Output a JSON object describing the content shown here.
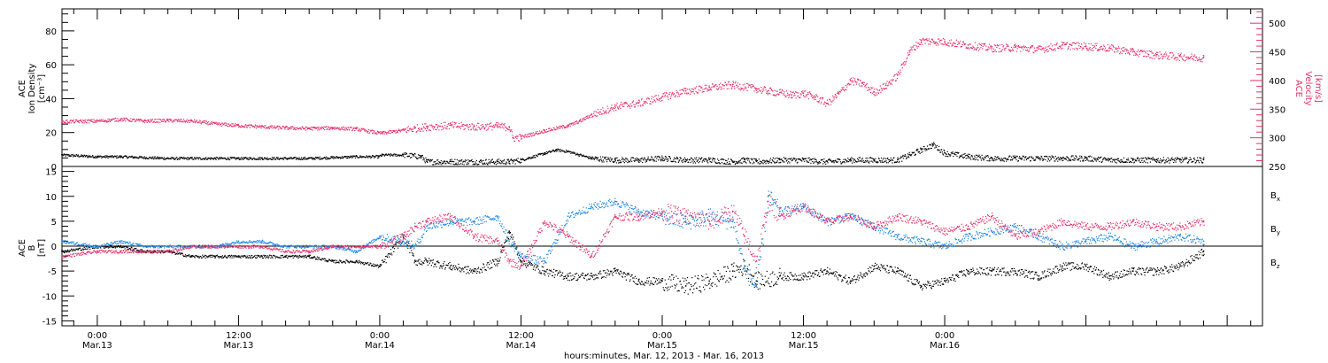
{
  "chart_data": [
    {
      "type": "scatter",
      "panel": "top",
      "ylabel": [
        "ACE",
        "Ion Density",
        "[cm⁻³]"
      ],
      "ylabel_right": [
        "ACE",
        "Velocity",
        "[km/s]"
      ],
      "ylim": [
        0,
        93
      ],
      "ylim_right": [
        250,
        525
      ],
      "yticks": [
        0,
        20,
        40,
        60,
        80
      ],
      "yticks_right": [
        250,
        300,
        350,
        400,
        450,
        500
      ],
      "color_left": "#000000",
      "color_right": "#e8306a",
      "series": [
        {
          "axis": "left",
          "color": "#000000",
          "x": [
            -3,
            0,
            2,
            6,
            10,
            14,
            18,
            22,
            23.9,
            24.2,
            26,
            27.5,
            28,
            30,
            34,
            35,
            36,
            38,
            39,
            40,
            42,
            44,
            46,
            48,
            50,
            52,
            54,
            55,
            56,
            58,
            60,
            62,
            64,
            66,
            68,
            69,
            70,
            71,
            72,
            74,
            76,
            78,
            80,
            82,
            84,
            86,
            88,
            90,
            92,
            94
          ],
          "y": [
            7,
            6,
            6,
            5,
            5,
            5,
            5,
            6,
            6,
            7,
            7,
            6,
            3,
            3,
            3,
            3,
            4,
            8,
            10,
            9,
            5,
            4,
            4,
            5,
            4,
            4,
            3,
            4,
            3,
            4,
            4,
            3,
            4,
            4,
            4,
            7,
            10,
            13,
            8,
            6,
            5,
            5,
            5,
            5,
            5,
            4,
            4,
            4,
            4,
            4
          ]
        },
        {
          "axis": "right",
          "color": "#e8306a",
          "x": [
            -3,
            0,
            2,
            4,
            6,
            8,
            10,
            12,
            14,
            16,
            18,
            20,
            22,
            23.9,
            24.2,
            26,
            27,
            28,
            30,
            32,
            34,
            35,
            35.3,
            36,
            38,
            40,
            41,
            42,
            44,
            46,
            48,
            50,
            52,
            54,
            56,
            57,
            58,
            59,
            60,
            61,
            62,
            63,
            64,
            65,
            66,
            67,
            68,
            69,
            70,
            72,
            74,
            76,
            78,
            80,
            82,
            84,
            86,
            88,
            90,
            92,
            94
          ],
          "y": [
            329,
            330,
            333,
            330,
            331,
            330,
            325,
            322,
            320,
            318,
            317,
            318,
            316,
            309,
            309,
            314,
            317,
            320,
            322,
            320,
            321,
            319,
            300,
            302,
            313,
            322,
            330,
            341,
            355,
            361,
            372,
            382,
            388,
            393,
            386,
            382,
            379,
            375,
            378,
            371,
            360,
            378,
            400,
            395,
            380,
            392,
            410,
            452,
            470,
            468,
            462,
            457,
            458,
            455,
            462,
            460,
            457,
            450,
            445,
            442,
            440
          ]
        }
      ]
    },
    {
      "type": "scatter",
      "panel": "bottom",
      "ylabel": [
        "ACE",
        "B",
        "[nT]"
      ],
      "ylim": [
        -16,
        16
      ],
      "yticks": [
        -15,
        -10,
        -5,
        0,
        5,
        10,
        15
      ],
      "xticks": [
        {
          "h": 0,
          "time": "0:00",
          "date": "Mar.13"
        },
        {
          "h": 12,
          "time": "12:00",
          "date": "Mar.13"
        },
        {
          "h": 24,
          "time": "0:00",
          "date": "Mar.14"
        },
        {
          "h": 36,
          "time": "12:00",
          "date": "Mar.14"
        },
        {
          "h": 48,
          "time": "0:00",
          "date": "Mar.15"
        },
        {
          "h": 60,
          "time": "12:00",
          "date": "Mar.15"
        },
        {
          "h": 72,
          "time": "0:00",
          "date": "Mar.16"
        }
      ],
      "xlabel": "hours:minutes, Mar. 12, 2013 - Mar. 16, 2013",
      "xlim": [
        -3,
        99
      ],
      "series": [
        {
          "name": "Bx",
          "color": "#000000",
          "x": [
            -3,
            0,
            2,
            4,
            6,
            8,
            10,
            12,
            14,
            16,
            18,
            20,
            22,
            24,
            26,
            27,
            28,
            30,
            32,
            34,
            35,
            36,
            38,
            40,
            42,
            44,
            46,
            48,
            50,
            52,
            54,
            55,
            56,
            58,
            60,
            62,
            64,
            66,
            68,
            70,
            72,
            74,
            76,
            78,
            80,
            82,
            84,
            86,
            88,
            90,
            92,
            94
          ],
          "y": [
            -1,
            0,
            0,
            -1,
            -1,
            -2,
            -2,
            -2,
            -2,
            -2,
            -2,
            -3,
            -3,
            -4,
            2,
            -3,
            -3,
            -4,
            -5,
            -3,
            3,
            -3,
            -5,
            -6,
            -6,
            -5,
            -7,
            -7,
            -8,
            -7,
            -5,
            -4,
            -7,
            -6,
            -6,
            -5,
            -7,
            -4,
            -5,
            -8,
            -7,
            -5,
            -5,
            -5,
            -6,
            -4,
            -4,
            -6,
            -5,
            -5,
            -4,
            -1
          ]
        },
        {
          "name": "By",
          "color": "#1a84e8",
          "x": [
            -3,
            0,
            2,
            4,
            6,
            8,
            10,
            12,
            14,
            16,
            18,
            20,
            22,
            24,
            26,
            27,
            28,
            30,
            32,
            34,
            35,
            36,
            38,
            40,
            42,
            44,
            46,
            48,
            50,
            52,
            54,
            55,
            56,
            57,
            58,
            60,
            62,
            64,
            66,
            68,
            70,
            72,
            74,
            76,
            78,
            80,
            82,
            84,
            86,
            88,
            90,
            92,
            94
          ],
          "y": [
            1,
            0,
            1,
            0,
            0,
            0,
            0,
            1,
            1,
            0,
            0,
            0,
            -1,
            2,
            1,
            0,
            4,
            5,
            5,
            6,
            1,
            -2,
            -3,
            6,
            8,
            9,
            7,
            6,
            5,
            6,
            5,
            -5,
            -8,
            10,
            7,
            8,
            5,
            6,
            4,
            2,
            1,
            0,
            2,
            3,
            4,
            2,
            0,
            1,
            2,
            0,
            1,
            2,
            1
          ]
        },
        {
          "name": "Bz",
          "color": "#e8306a",
          "x": [
            -3,
            0,
            2,
            4,
            6,
            8,
            10,
            12,
            14,
            16,
            18,
            20,
            22,
            24,
            26,
            27,
            28,
            30,
            32,
            34,
            35,
            36,
            38,
            40,
            42,
            44,
            46,
            48,
            50,
            52,
            54,
            55,
            56,
            57,
            58,
            60,
            62,
            64,
            66,
            68,
            70,
            72,
            74,
            76,
            78,
            80,
            82,
            84,
            86,
            88,
            90,
            92,
            94
          ],
          "y": [
            -2,
            -1,
            -1,
            -1,
            -1,
            0,
            0,
            0,
            0,
            -1,
            -1,
            0,
            0,
            0,
            2,
            4,
            5,
            6,
            2,
            1,
            -3,
            -4,
            5,
            2,
            -2,
            6,
            6,
            7,
            6,
            5,
            7,
            2,
            -3,
            9,
            6,
            8,
            5,
            6,
            4,
            6,
            5,
            3,
            4,
            6,
            2,
            3,
            5,
            4,
            4,
            5,
            4,
            4,
            5
          ]
        }
      ],
      "legend": [
        {
          "label": "B",
          "sub": "x",
          "color": "#000000"
        },
        {
          "label": "B",
          "sub": "y",
          "color": "#1a84e8"
        },
        {
          "label": "B",
          "sub": "z",
          "color": "#e8306a"
        }
      ]
    }
  ]
}
